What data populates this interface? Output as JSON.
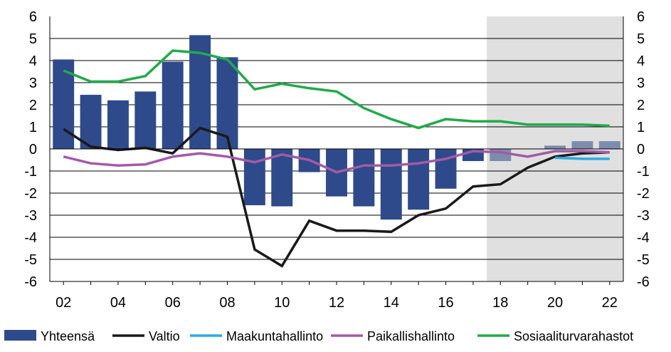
{
  "chart_data": {
    "type": "bar",
    "x": [
      "02",
      "03",
      "04",
      "05",
      "06",
      "07",
      "08",
      "09",
      "10",
      "11",
      "12",
      "13",
      "14",
      "15",
      "16",
      "17",
      "18",
      "19",
      "20",
      "21",
      "22"
    ],
    "x_tick_labels": [
      "02",
      "04",
      "06",
      "08",
      "10",
      "12",
      "14",
      "16",
      "18",
      "20",
      "22"
    ],
    "forecast_from": "18",
    "ylim": [
      -6,
      6
    ],
    "y_ticks": [
      "-6",
      "-5",
      "-4",
      "-3",
      "-2",
      "-1",
      "0",
      "1",
      "2",
      "3",
      "4",
      "5",
      "6"
    ],
    "grid": true,
    "legend_position": "bottom",
    "series": [
      {
        "name": "Yhteensä",
        "type": "bar",
        "color": "#2e4a8a",
        "forecast_color": "#7d8cac",
        "values": [
          4.05,
          2.45,
          2.2,
          2.6,
          3.95,
          5.15,
          4.15,
          -2.55,
          -2.6,
          -1.05,
          -2.15,
          -2.6,
          -3.2,
          -2.75,
          -1.8,
          -0.55,
          -0.55,
          null,
          0.15,
          0.35,
          0.35
        ]
      },
      {
        "name": "Valtio",
        "type": "line",
        "color": "#1a1a1a",
        "values": [
          0.9,
          0.1,
          -0.05,
          0.05,
          -0.2,
          0.95,
          0.55,
          -4.55,
          -5.3,
          -3.25,
          -3.7,
          -3.7,
          -3.75,
          -3.0,
          -2.7,
          -1.7,
          -1.6,
          -0.85,
          -0.35,
          -0.2,
          -0.15
        ]
      },
      {
        "name": "Maakuntahallinto",
        "type": "line",
        "color": "#29abe2",
        "values": [
          null,
          null,
          null,
          null,
          null,
          null,
          null,
          null,
          null,
          null,
          null,
          null,
          null,
          null,
          null,
          null,
          null,
          null,
          -0.4,
          -0.45,
          -0.45
        ]
      },
      {
        "name": "Paikallishallinto",
        "type": "line",
        "color": "#a35aa8",
        "values": [
          -0.35,
          -0.65,
          -0.75,
          -0.7,
          -0.35,
          -0.2,
          -0.35,
          -0.6,
          -0.25,
          -0.5,
          -1.05,
          -0.75,
          -0.75,
          -0.65,
          -0.45,
          -0.1,
          -0.15,
          -0.35,
          -0.1,
          -0.1,
          -0.15
        ]
      },
      {
        "name": "Sosiaaliturvarahastot",
        "type": "line",
        "color": "#21aa4a",
        "values": [
          3.55,
          3.05,
          3.05,
          3.3,
          4.45,
          4.35,
          4.05,
          2.7,
          2.95,
          2.75,
          2.6,
          1.85,
          1.35,
          0.95,
          1.35,
          1.25,
          1.25,
          1.1,
          1.1,
          1.1,
          1.05
        ]
      }
    ]
  }
}
